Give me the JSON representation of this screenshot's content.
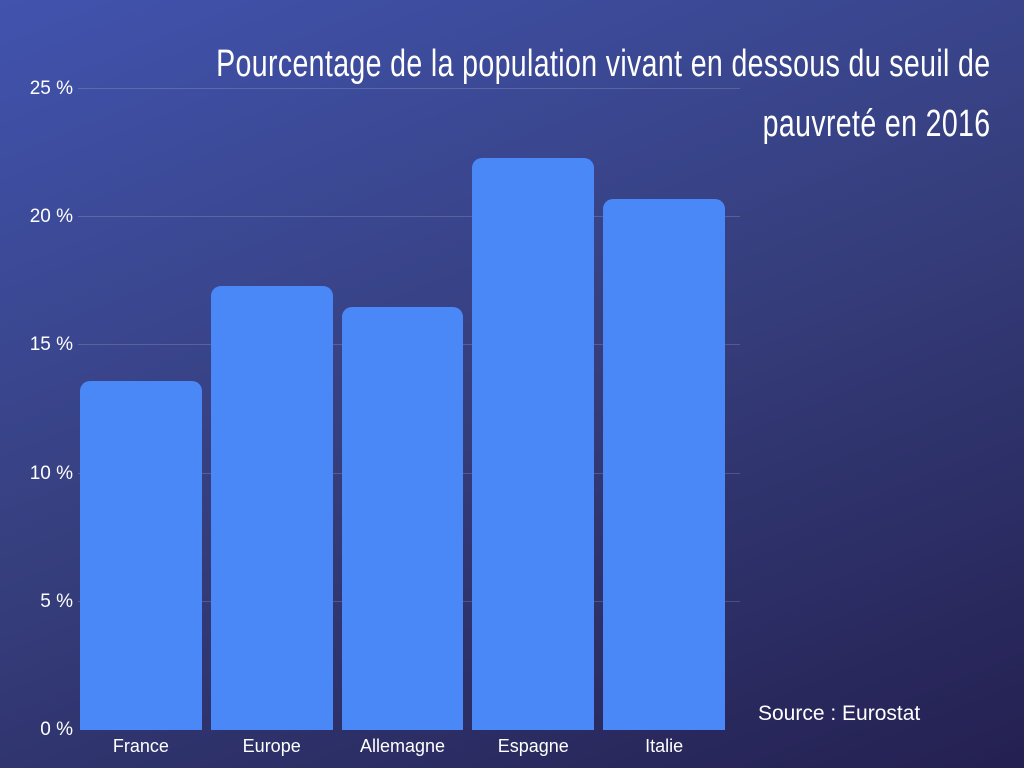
{
  "chart_data": {
    "type": "bar",
    "title": "Pourcentage de la population vivant en dessous du seuil de pauvreté en 2016",
    "title_lines": [
      "Pourcentage de la population vivant en dessous du seuil de",
      "pauvreté en 2016"
    ],
    "categories": [
      "France",
      "Europe",
      "Allemagne",
      "Espagne",
      "Italie"
    ],
    "values": [
      13.6,
      17.3,
      16.5,
      22.3,
      20.7
    ],
    "unit": "%",
    "xlabel": "",
    "ylabel": "",
    "ylim": [
      0,
      25
    ],
    "yticks": [
      0,
      5,
      10,
      15,
      20,
      25
    ],
    "ytick_labels": [
      "0 %",
      "5 %",
      "10 %",
      "15 %",
      "20 %",
      "25 %"
    ],
    "grid": true,
    "legend": false,
    "annotations": [
      "Source : Eurostat"
    ],
    "colors": {
      "bar": "#4a88f8",
      "text": "#ffffff",
      "gridline": "rgba(255,255,255,0.16)",
      "bg_top": "#4153ae",
      "bg_mid": "#363f7e",
      "bg_bottom": "#242051"
    }
  }
}
